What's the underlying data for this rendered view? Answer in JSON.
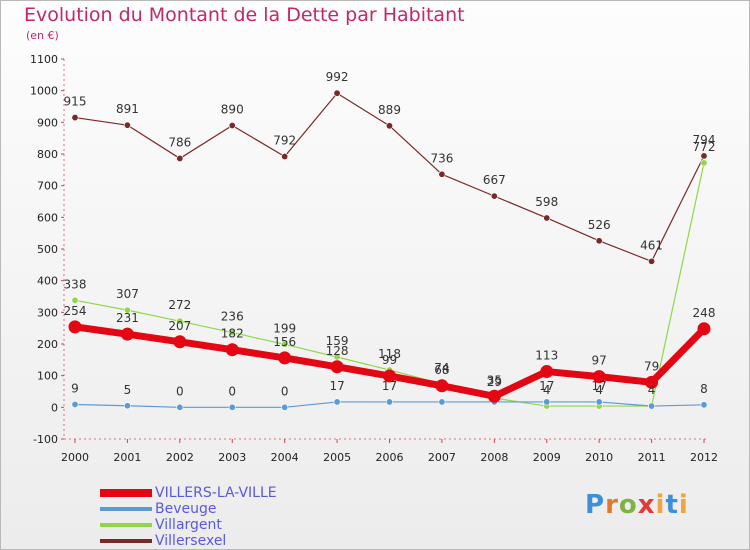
{
  "title": "Evolution du Montant de la Dette par Habitant",
  "subtitle": "(en €)",
  "logo_text": "Proxiti",
  "chart_data": {
    "type": "line",
    "x": [
      "2000",
      "2001",
      "2002",
      "2003",
      "2004",
      "2005",
      "2006",
      "2007",
      "2008",
      "2009",
      "2010",
      "2011",
      "2012"
    ],
    "ylim": [
      -100,
      1100
    ],
    "yticks": [
      -100,
      0,
      100,
      200,
      300,
      400,
      500,
      600,
      700,
      800,
      900,
      1000,
      1100
    ],
    "grid": false,
    "legend_position": "bottom-left",
    "series": [
      {
        "name": "VILLERS-LA-VILLE",
        "color": "#e30613",
        "emphasis": true,
        "values": [
          254,
          231,
          207,
          182,
          156,
          128,
          99,
          68,
          35,
          113,
          97,
          79,
          248
        ],
        "labels": [
          "254",
          "231",
          "207",
          "182",
          "156",
          "128",
          "99",
          "68",
          "35",
          "113",
          "97",
          "79",
          "248"
        ]
      },
      {
        "name": "Beveuge",
        "color": "#5b9bd5",
        "emphasis": false,
        "values": [
          9,
          5,
          0,
          0,
          0,
          17,
          17,
          17,
          17,
          17,
          17,
          4,
          8
        ],
        "labels": [
          "9",
          "5",
          "0",
          "0",
          "0",
          "17",
          "17",
          "",
          "",
          "17",
          "17",
          "4",
          "8"
        ]
      },
      {
        "name": "Villargent",
        "color": "#8ed848",
        "emphasis": false,
        "values": [
          338,
          307,
          272,
          236,
          199,
          159,
          118,
          74,
          29,
          4,
          4,
          4,
          772
        ],
        "labels": [
          "338",
          "307",
          "272",
          "236",
          "199",
          "159",
          "118",
          "74",
          "29",
          "4",
          "4",
          "",
          "772"
        ]
      },
      {
        "name": "Villersexel",
        "color": "#7a2828",
        "emphasis": false,
        "values": [
          915,
          891,
          786,
          890,
          792,
          992,
          889,
          736,
          667,
          598,
          526,
          461,
          794
        ],
        "labels": [
          "915",
          "891",
          "786",
          "890",
          "792",
          "992",
          "889",
          "736",
          "667",
          "598",
          "526",
          "461",
          "794"
        ]
      }
    ]
  }
}
